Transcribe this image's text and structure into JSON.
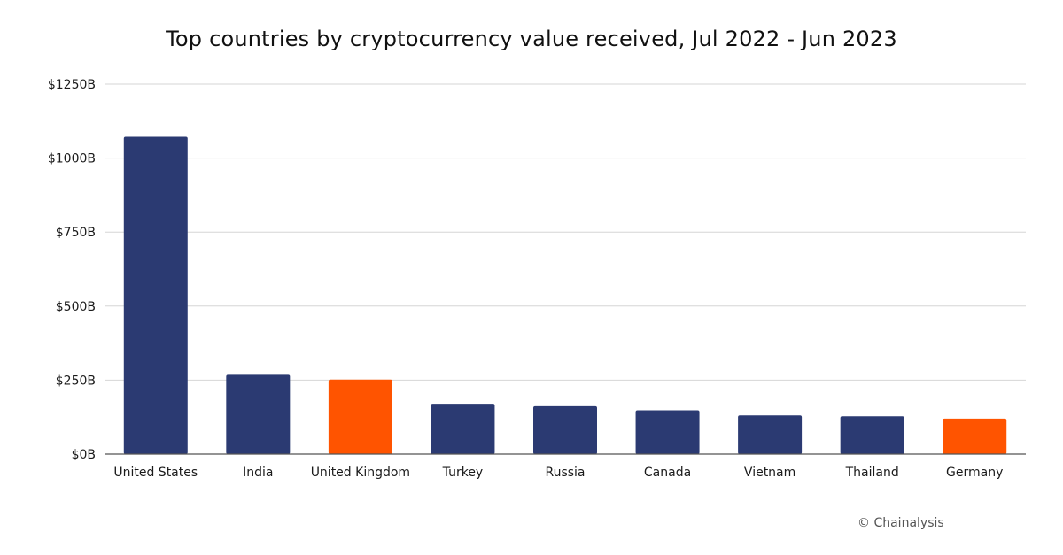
{
  "chart_data": {
    "type": "bar",
    "title": "Top countries by cryptocurrency value received, Jul 2022 - Jun 2023",
    "xlabel": "",
    "ylabel": "",
    "ylim": [
      0,
      1250
    ],
    "yticks": [
      0,
      250,
      500,
      750,
      1000,
      1250
    ],
    "ytick_labels": [
      "$0B",
      "$250B",
      "$500B",
      "$750B",
      "$1000B",
      "$1250B"
    ],
    "grid": true,
    "categories": [
      "United States",
      "India",
      "United Kingdom",
      "Turkey",
      "Russia",
      "Canada",
      "Vietnam",
      "Thailand",
      "Germany"
    ],
    "values": [
      1072,
      268,
      252,
      170,
      162,
      148,
      131,
      128,
      120
    ],
    "highlighted": [
      false,
      false,
      true,
      false,
      false,
      false,
      false,
      false,
      true
    ],
    "colors": {
      "default": "#2b3a72",
      "highlight": "#ff5400",
      "grid": "#d6d6d6",
      "axis": "#555555"
    }
  },
  "credit": "© Chainalysis"
}
